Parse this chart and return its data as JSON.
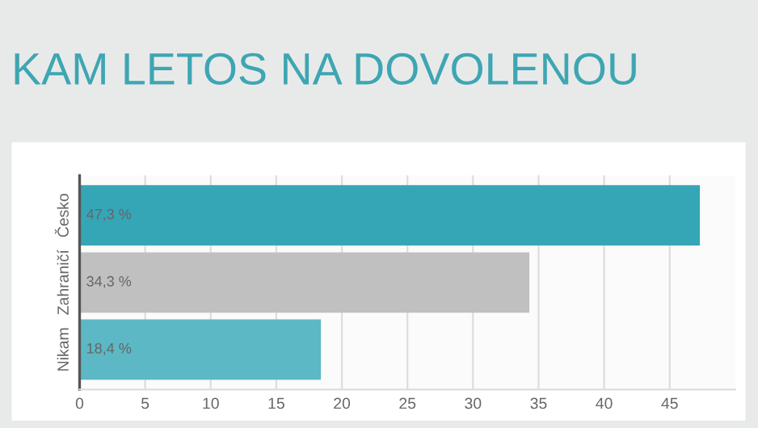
{
  "chart_data": {
    "type": "bar",
    "orientation": "horizontal",
    "title": "KAM LETOS NA DOVOLENOU",
    "categories": [
      "Česko",
      "Zahraničí",
      "Nikam"
    ],
    "values": [
      47.3,
      34.3,
      18.4
    ],
    "colors": [
      "#35a6b6",
      "#c0c0c0",
      "#5cb8c4"
    ],
    "value_labels": [
      "47,3 %",
      "34,3 %",
      "18,4 %"
    ],
    "xlim": [
      0,
      50
    ],
    "xticks": [
      0,
      5,
      10,
      15,
      20,
      25,
      30,
      35,
      40,
      45
    ],
    "grid": "x"
  }
}
